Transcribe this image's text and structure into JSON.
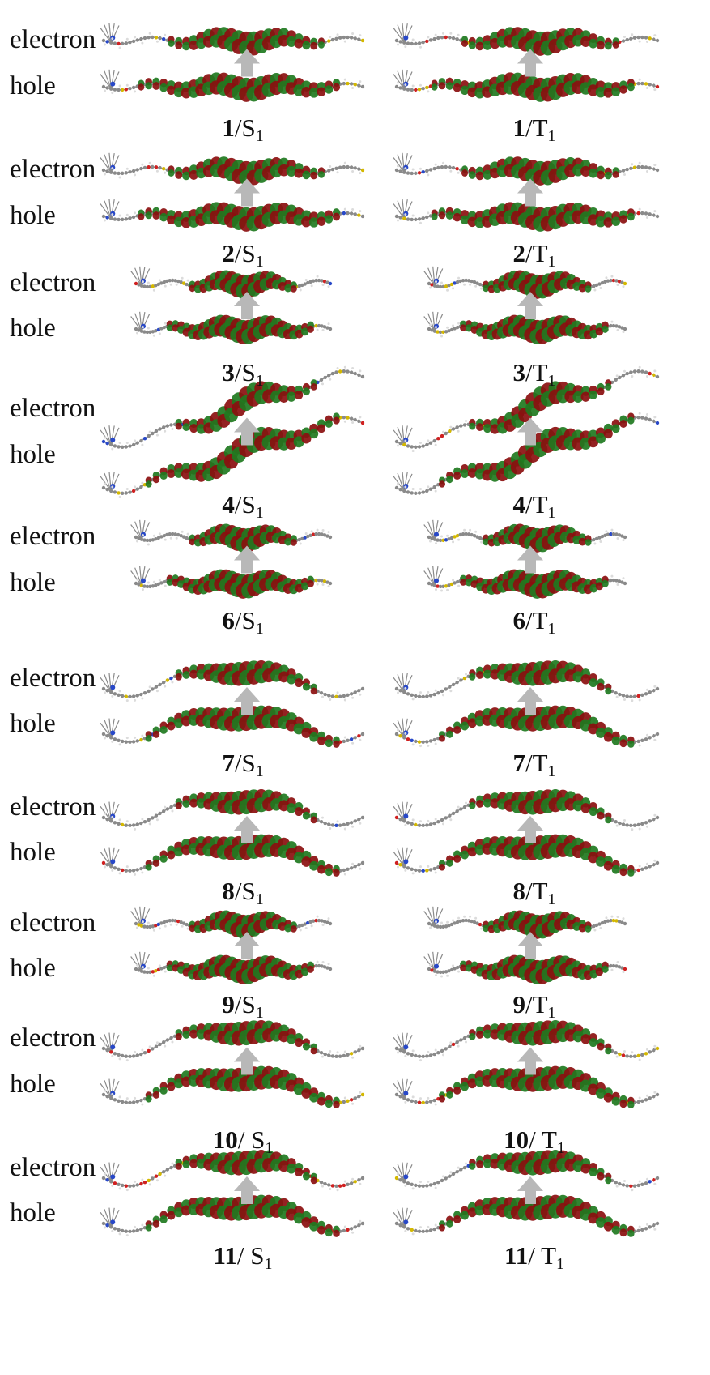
{
  "row_labels": {
    "electron": "electron",
    "hole": "hole"
  },
  "panels": [
    {
      "compound": "1",
      "state_prefix": "/",
      "state_letter": "S",
      "state_sub": "1",
      "column": "left",
      "shape": "linear"
    },
    {
      "compound": "1",
      "state_prefix": "/",
      "state_letter": "T",
      "state_sub": "1",
      "column": "right",
      "shape": "linear"
    },
    {
      "compound": "2",
      "state_prefix": "/",
      "state_letter": "S",
      "state_sub": "1",
      "column": "left",
      "shape": "linear"
    },
    {
      "compound": "2",
      "state_prefix": "/",
      "state_letter": "T",
      "state_sub": "1",
      "column": "right",
      "shape": "linear"
    },
    {
      "compound": "3",
      "state_prefix": "/",
      "state_letter": "S",
      "state_sub": "1",
      "column": "left",
      "shape": "short"
    },
    {
      "compound": "3",
      "state_prefix": "/",
      "state_letter": "T",
      "state_sub": "1",
      "column": "right",
      "shape": "short"
    },
    {
      "compound": "4",
      "state_prefix": "/",
      "state_letter": "S",
      "state_sub": "1",
      "column": "left",
      "shape": "wave"
    },
    {
      "compound": "4",
      "state_prefix": "/",
      "state_letter": "T",
      "state_sub": "1",
      "column": "right",
      "shape": "wave"
    },
    {
      "compound": "6",
      "state_prefix": "/",
      "state_letter": "S",
      "state_sub": "1",
      "column": "left",
      "shape": "short"
    },
    {
      "compound": "6",
      "state_prefix": "/",
      "state_letter": "T",
      "state_sub": "1",
      "column": "right",
      "shape": "short"
    },
    {
      "compound": "7",
      "state_prefix": "/",
      "state_letter": "S",
      "state_sub": "1",
      "column": "left",
      "shape": "arch"
    },
    {
      "compound": "7",
      "state_prefix": "/",
      "state_letter": "T",
      "state_sub": "1",
      "column": "right",
      "shape": "arch"
    },
    {
      "compound": "8",
      "state_prefix": "/",
      "state_letter": "S",
      "state_sub": "1",
      "column": "left",
      "shape": "arch"
    },
    {
      "compound": "8",
      "state_prefix": "/",
      "state_letter": "T",
      "state_sub": "1",
      "column": "right",
      "shape": "arch"
    },
    {
      "compound": "9",
      "state_prefix": "/",
      "state_letter": "S",
      "state_sub": "1",
      "column": "left",
      "shape": "short"
    },
    {
      "compound": "9",
      "state_prefix": "/",
      "state_letter": "T",
      "state_sub": "1",
      "column": "right",
      "shape": "short"
    },
    {
      "compound": "10",
      "state_prefix": "/ ",
      "state_letter": "S",
      "state_sub": "1",
      "column": "left",
      "shape": "arch"
    },
    {
      "compound": "10",
      "state_prefix": "/ ",
      "state_letter": "T",
      "state_sub": "1",
      "column": "right",
      "shape": "arch"
    },
    {
      "compound": "11",
      "state_prefix": "/ ",
      "state_letter": "S",
      "state_sub": "1",
      "column": "left",
      "shape": "arch"
    },
    {
      "compound": "11",
      "state_prefix": "/ ",
      "state_letter": "T",
      "state_sub": "1",
      "column": "right",
      "shape": "arch"
    }
  ],
  "colors": {
    "orbital_positive": "#1f7a1f",
    "orbital_negative": "#8b0f0f",
    "carbon": "#8a8a8a",
    "hydrogen": "#dcdcdc",
    "nitrogen": "#2848c8",
    "oxygen": "#d02020",
    "sulfur": "#d4b800",
    "arrow": "#b8b8b8",
    "text": "#111111"
  }
}
